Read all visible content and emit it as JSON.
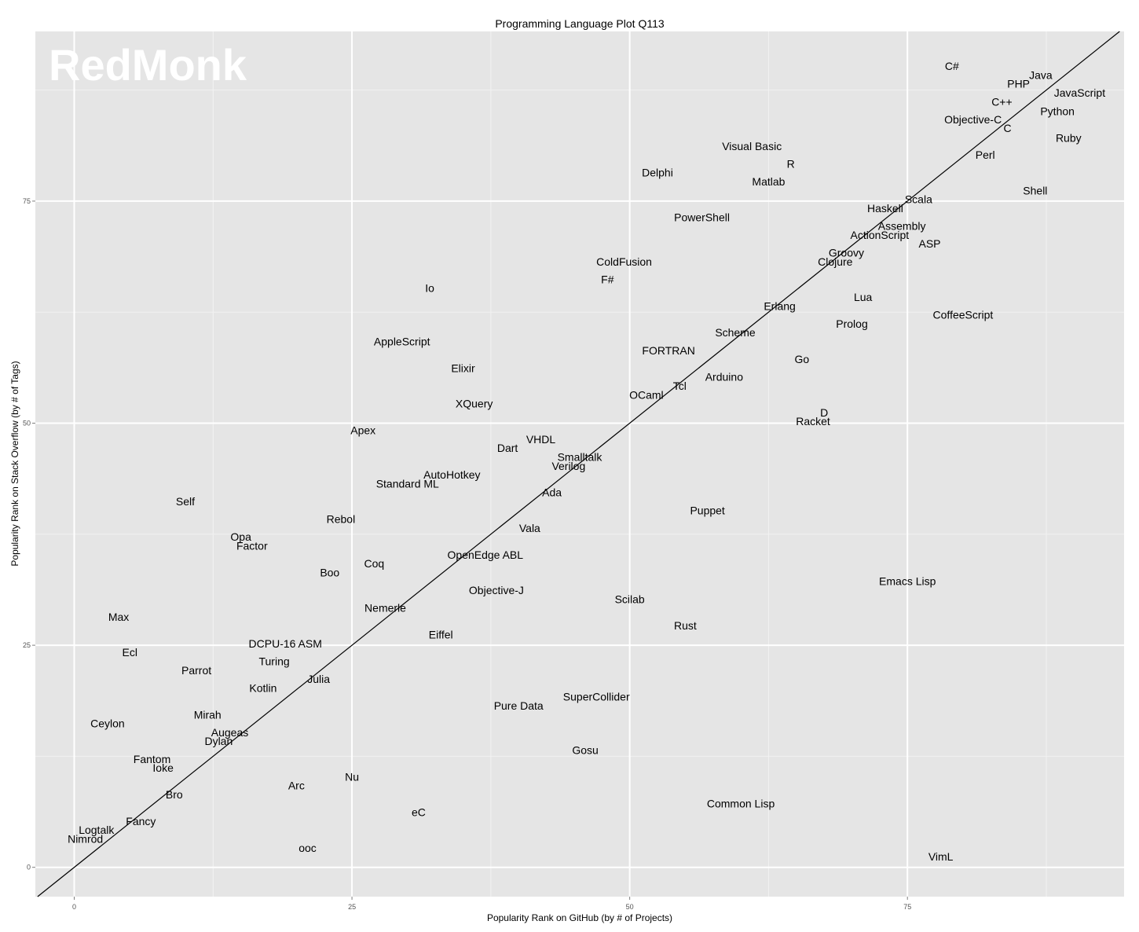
{
  "chart_data": {
    "type": "scatter",
    "title": "Programming Language Plot Q113",
    "xlabel": "Popularity Rank on GitHub (by # of Projects)",
    "ylabel": "Popularity Rank on Stack Overflow (by # of Tags)",
    "xlim": [
      -3.5,
      94.5
    ],
    "ylim": [
      -3.3,
      94.1
    ],
    "x_ticks": [
      0,
      25,
      50,
      75
    ],
    "y_ticks": [
      0,
      25,
      50,
      75
    ],
    "grid": true,
    "reference_line": "y = x",
    "watermark": "RedMonk",
    "colors": {
      "panel": "#e5e5e5",
      "grid_major": "#ffffff",
      "grid_minor": "#f2f2f2",
      "line": "#000000",
      "text": "#000000"
    },
    "points": [
      {
        "label": "C#",
        "x": 79,
        "y": 90.2
      },
      {
        "label": "Java",
        "x": 87,
        "y": 89.2
      },
      {
        "label": "PHP",
        "x": 85,
        "y": 88.2
      },
      {
        "label": "JavaScript",
        "x": 90.5,
        "y": 87.2
      },
      {
        "label": "C++",
        "x": 83.5,
        "y": 86.2
      },
      {
        "label": "Python",
        "x": 88.5,
        "y": 85.1
      },
      {
        "label": "Objective-C",
        "x": 80.9,
        "y": 84.2
      },
      {
        "label": "C",
        "x": 84,
        "y": 83.2
      },
      {
        "label": "Ruby",
        "x": 89.5,
        "y": 82.1
      },
      {
        "label": "Visual Basic",
        "x": 61,
        "y": 81.2
      },
      {
        "label": "Perl",
        "x": 82,
        "y": 80.2
      },
      {
        "label": "R",
        "x": 64.5,
        "y": 79.2
      },
      {
        "label": "Delphi",
        "x": 52.5,
        "y": 78.2
      },
      {
        "label": "Matlab",
        "x": 62.5,
        "y": 77.2
      },
      {
        "label": "Shell",
        "x": 86.5,
        "y": 76.2
      },
      {
        "label": "Scala",
        "x": 76,
        "y": 75.2
      },
      {
        "label": "Haskell",
        "x": 73,
        "y": 74.2
      },
      {
        "label": "PowerShell",
        "x": 56.5,
        "y": 73.2
      },
      {
        "label": "Assembly",
        "x": 74.5,
        "y": 72.2
      },
      {
        "label": "ActionScript",
        "x": 72.5,
        "y": 71.2
      },
      {
        "label": "ASP",
        "x": 77,
        "y": 70.2
      },
      {
        "label": "Groovy",
        "x": 69.5,
        "y": 69.2
      },
      {
        "label": "ColdFusion",
        "x": 49.5,
        "y": 68.2
      },
      {
        "label": "Clojure",
        "x": 68.5,
        "y": 68.2
      },
      {
        "label": "F#",
        "x": 48,
        "y": 66.2
      },
      {
        "label": "Io",
        "x": 32,
        "y": 65.2
      },
      {
        "label": "Lua",
        "x": 71,
        "y": 64.2
      },
      {
        "label": "Erlang",
        "x": 63.5,
        "y": 63.2
      },
      {
        "label": "CoffeeScript",
        "x": 80,
        "y": 62.2
      },
      {
        "label": "Prolog",
        "x": 70,
        "y": 61.2
      },
      {
        "label": "Scheme",
        "x": 59.5,
        "y": 60.2
      },
      {
        "label": "AppleScript",
        "x": 29.5,
        "y": 59.2
      },
      {
        "label": "FORTRAN",
        "x": 53.5,
        "y": 58.2
      },
      {
        "label": "Go",
        "x": 65.5,
        "y": 57.2
      },
      {
        "label": "Elixir",
        "x": 35,
        "y": 56.2
      },
      {
        "label": "Arduino",
        "x": 58.5,
        "y": 55.2
      },
      {
        "label": "Tcl",
        "x": 54.5,
        "y": 54.2
      },
      {
        "label": "OCaml",
        "x": 51.5,
        "y": 53.2
      },
      {
        "label": "XQuery",
        "x": 36,
        "y": 52.2
      },
      {
        "label": "D",
        "x": 67.5,
        "y": 51.2
      },
      {
        "label": "Racket",
        "x": 66.5,
        "y": 50.2
      },
      {
        "label": "Apex",
        "x": 26,
        "y": 49.2
      },
      {
        "label": "VHDL",
        "x": 42,
        "y": 48.2
      },
      {
        "label": "Dart",
        "x": 39,
        "y": 47.2
      },
      {
        "label": "Smalltalk",
        "x": 45.5,
        "y": 46.2
      },
      {
        "label": "Verilog",
        "x": 44.5,
        "y": 45.2
      },
      {
        "label": "AutoHotkey",
        "x": 34,
        "y": 44.2
      },
      {
        "label": "Standard ML",
        "x": 30,
        "y": 43.2
      },
      {
        "label": "Ada",
        "x": 43,
        "y": 42.2
      },
      {
        "label": "Self",
        "x": 10,
        "y": 41.2
      },
      {
        "label": "Puppet",
        "x": 57,
        "y": 40.2
      },
      {
        "label": "Rebol",
        "x": 24,
        "y": 39.2
      },
      {
        "label": "Vala",
        "x": 41,
        "y": 38.2
      },
      {
        "label": "Opa",
        "x": 15,
        "y": 37.2
      },
      {
        "label": "Factor",
        "x": 16,
        "y": 36.2
      },
      {
        "label": "OpenEdge ABL",
        "x": 37,
        "y": 35.2
      },
      {
        "label": "Coq",
        "x": 27,
        "y": 34.2
      },
      {
        "label": "Boo",
        "x": 23,
        "y": 33.2
      },
      {
        "label": "Emacs Lisp",
        "x": 75,
        "y": 32.2
      },
      {
        "label": "Objective-J",
        "x": 38,
        "y": 31.2
      },
      {
        "label": "Scilab",
        "x": 50,
        "y": 30.2
      },
      {
        "label": "Nemerle",
        "x": 28,
        "y": 29.2
      },
      {
        "label": "Max",
        "x": 4,
        "y": 28.2
      },
      {
        "label": "Rust",
        "x": 55,
        "y": 27.2
      },
      {
        "label": "Eiffel",
        "x": 33,
        "y": 26.2
      },
      {
        "label": "DCPU-16 ASM",
        "x": 19,
        "y": 25.2
      },
      {
        "label": "Ecl",
        "x": 5,
        "y": 24.2
      },
      {
        "label": "Turing",
        "x": 18,
        "y": 23.2
      },
      {
        "label": "Parrot",
        "x": 11,
        "y": 22.2
      },
      {
        "label": "Julia",
        "x": 22,
        "y": 21.2
      },
      {
        "label": "Kotlin",
        "x": 17,
        "y": 20.2
      },
      {
        "label": "SuperCollider",
        "x": 47,
        "y": 19.2
      },
      {
        "label": "Pure Data",
        "x": 40,
        "y": 18.2
      },
      {
        "label": "Mirah",
        "x": 12,
        "y": 17.2
      },
      {
        "label": "Ceylon",
        "x": 3,
        "y": 16.2
      },
      {
        "label": "Augeas",
        "x": 14,
        "y": 15.2
      },
      {
        "label": "Dylan",
        "x": 13,
        "y": 14.2
      },
      {
        "label": "Gosu",
        "x": 46,
        "y": 13.2
      },
      {
        "label": "Fantom",
        "x": 7,
        "y": 12.2
      },
      {
        "label": "Ioke",
        "x": 8,
        "y": 11.2
      },
      {
        "label": "Nu",
        "x": 25,
        "y": 10.2
      },
      {
        "label": "Arc",
        "x": 20,
        "y": 9.2
      },
      {
        "label": "Bro",
        "x": 9,
        "y": 8.2
      },
      {
        "label": "Common Lisp",
        "x": 60,
        "y": 7.2
      },
      {
        "label": "eC",
        "x": 31,
        "y": 6.2
      },
      {
        "label": "Fancy",
        "x": 6,
        "y": 5.2
      },
      {
        "label": "Logtalk",
        "x": 2,
        "y": 4.2
      },
      {
        "label": "Nimrod",
        "x": 1,
        "y": 3.2
      },
      {
        "label": "ooc",
        "x": 21,
        "y": 2.2
      },
      {
        "label": "VimL",
        "x": 78,
        "y": 1.2
      }
    ]
  }
}
